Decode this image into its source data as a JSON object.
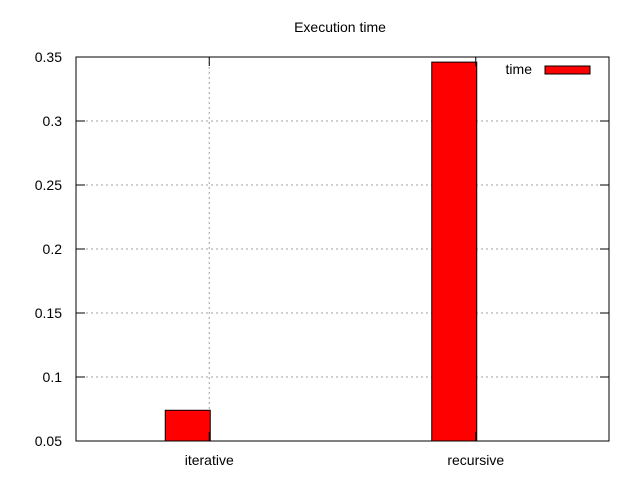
{
  "chart_data": {
    "type": "bar",
    "title": "Execution time",
    "xlabel": "",
    "ylabel": "",
    "categories": [
      "iterative",
      "recursive"
    ],
    "series": [
      {
        "name": "time",
        "values": [
          0.074,
          0.346
        ],
        "color": "#ff0000"
      }
    ],
    "ylim": [
      0.05,
      0.35
    ],
    "yticks": [
      0.05,
      0.1,
      0.15,
      0.2,
      0.25,
      0.3,
      0.35
    ],
    "ytick_labels": [
      "0.05",
      "0.1",
      "0.15",
      "0.2",
      "0.25",
      "0.3",
      "0.35"
    ],
    "grid": true,
    "legend_position": "top-right"
  }
}
